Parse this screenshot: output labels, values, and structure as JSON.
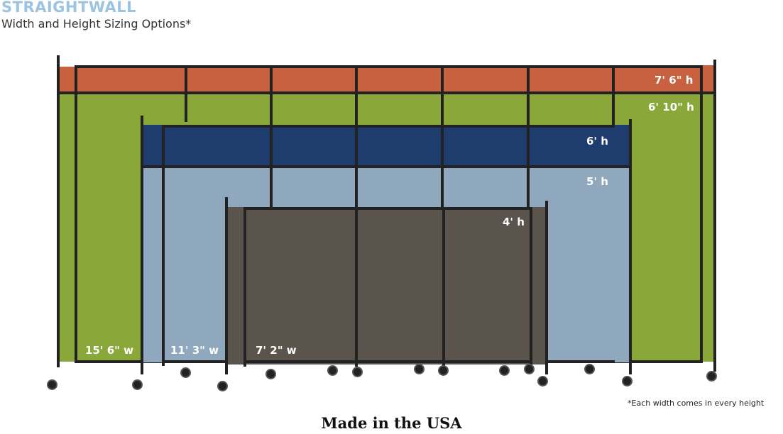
{
  "header": {
    "brand": "STRAIGHTWALL",
    "subtitle": "Width and Height Sizing Options*"
  },
  "heights": [
    "7' 6\" h",
    "6' 10\" h",
    "6' h",
    "5' h",
    "4' h"
  ],
  "widths": [
    "15' 6\" w",
    "11' 3\" w",
    "7' 2\" w"
  ],
  "footnote": "*Each width comes in every height",
  "tagline": "Made in the USA",
  "colors": {
    "orange": "#c8613f",
    "green": "#8aa83a",
    "navy": "#1f3c6e",
    "light_blue": "#8fa8be",
    "brown": "#5b544c",
    "brand": "#9cc4e0"
  }
}
